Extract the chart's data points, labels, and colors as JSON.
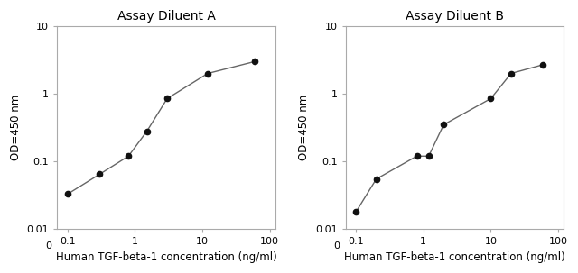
{
  "panel_A": {
    "title": "Assay Diluent A",
    "x": [
      0.1,
      0.3,
      0.8,
      1.5,
      3.0,
      12.0,
      60.0
    ],
    "y": [
      0.033,
      0.065,
      0.12,
      0.28,
      0.85,
      2.0,
      3.0
    ]
  },
  "panel_B": {
    "title": "Assay Diluent B",
    "x": [
      0.1,
      0.2,
      0.8,
      1.2,
      2.0,
      10.0,
      20.0,
      60.0
    ],
    "y": [
      0.018,
      0.055,
      0.12,
      0.12,
      0.35,
      0.85,
      2.0,
      2.7
    ]
  },
  "xlabel": "Human TGF-beta-1 concentration (ng/ml)",
  "ylabel": "OD=450 nm",
  "xlim": [
    0.07,
    120
  ],
  "ylim": [
    0.01,
    10
  ],
  "line_color": "#666666",
  "marker_color": "#111111",
  "background_color": "#ffffff",
  "title_fontsize": 10,
  "label_fontsize": 8.5,
  "tick_fontsize": 8,
  "xticks": [
    0.1,
    1,
    10,
    100
  ],
  "xtick_labels": [
    "0.1",
    "1",
    "10",
    "100"
  ],
  "yticks": [
    0.01,
    0.1,
    1,
    10
  ],
  "ytick_labels": [
    "0.01",
    "0.1",
    "1",
    "10"
  ]
}
